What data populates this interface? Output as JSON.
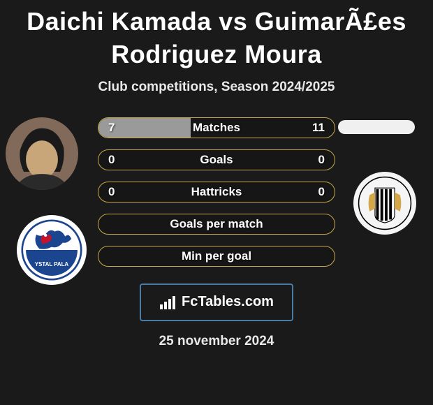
{
  "title": "Daichi Kamada vs GuimarÃ£es Rodriguez Moura",
  "subtitle": "Club competitions, Season 2024/2025",
  "brand": "FcTables.com",
  "date": "25 november 2024",
  "colors": {
    "background": "#1a1a1a",
    "row_border": "#c7a84a",
    "row_fill": "#9a9a9a",
    "brand_border": "#4a7ba6"
  },
  "player_left": {
    "photo_bg": "#2a2a2a",
    "club_name": "Crystal Palace",
    "club_colors": {
      "primary": "#1b458f",
      "secondary": "#c4122e",
      "white": "#ffffff"
    }
  },
  "player_right": {
    "club_name": "Newcastle",
    "club_colors": {
      "stripes": "#000000",
      "white": "#ffffff",
      "bg": "#f5f5f5"
    }
  },
  "rows": [
    {
      "label": "Matches",
      "left": "7",
      "right": "11",
      "fill_pct": 39
    },
    {
      "label": "Goals",
      "left": "0",
      "right": "0",
      "fill_pct": 0
    },
    {
      "label": "Hattricks",
      "left": "0",
      "right": "0",
      "fill_pct": 0
    },
    {
      "label": "Goals per match",
      "left": "",
      "right": "",
      "fill_pct": 0
    },
    {
      "label": "Min per goal",
      "left": "",
      "right": "",
      "fill_pct": 0
    }
  ]
}
